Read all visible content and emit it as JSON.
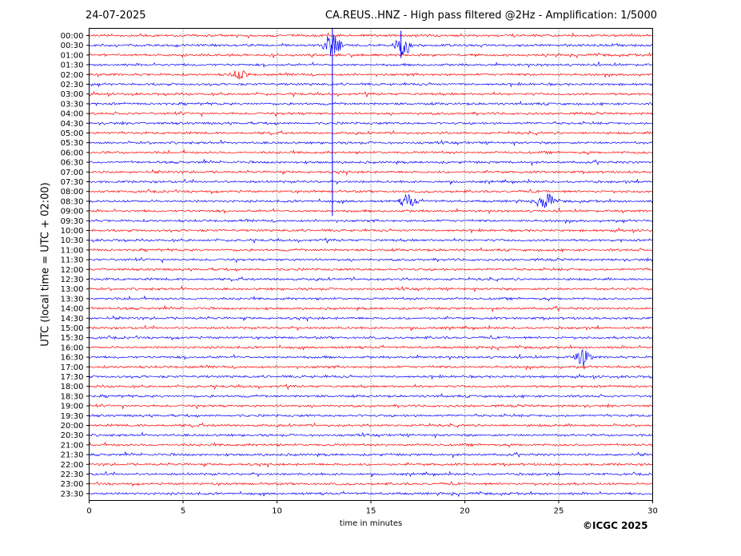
{
  "header": {
    "date": "24-07-2025",
    "title": "CA.REUS..HNZ - High pass filtered @2Hz - Amplification: 1/5000"
  },
  "footer": {
    "copyright": "©ICGC 2025"
  },
  "chart_data": {
    "type": "line",
    "title": "CA.REUS..HNZ - High pass filtered @2Hz - Amplification: 1/5000",
    "xlabel": "time in minutes",
    "ylabel": "UTC (local time = UTC + 02:00)",
    "xlim": [
      0,
      30
    ],
    "x_ticks": [
      0,
      5,
      10,
      15,
      20,
      25,
      30
    ],
    "grid": "vertical dotted",
    "trace_colors": [
      "#ff0000",
      "#0000ff"
    ],
    "rows": [
      "00:00",
      "00:30",
      "01:00",
      "01:30",
      "02:00",
      "02:30",
      "03:00",
      "03:30",
      "04:00",
      "04:30",
      "05:00",
      "05:30",
      "06:00",
      "06:30",
      "07:00",
      "07:30",
      "08:00",
      "08:30",
      "09:00",
      "09:30",
      "10:00",
      "10:30",
      "11:00",
      "11:30",
      "12:00",
      "12:30",
      "13:00",
      "13:30",
      "14:00",
      "14:30",
      "15:00",
      "15:30",
      "16:00",
      "16:30",
      "17:00",
      "17:30",
      "18:00",
      "18:30",
      "19:00",
      "19:30",
      "20:00",
      "20:30",
      "21:00",
      "21:30",
      "22:00",
      "22:30",
      "23:00",
      "23:30"
    ],
    "events": [
      {
        "row": "00:30",
        "minute": 16.7,
        "amplitude": 1.2
      },
      {
        "row": "00:30",
        "minute": 12.95,
        "amplitude": 1.5
      },
      {
        "row": "08:30",
        "minute": 17.0,
        "amplitude": 0.8
      },
      {
        "row": "08:30",
        "minute": 24.3,
        "amplitude": 1.0
      },
      {
        "row": "16:30",
        "minute": 26.3,
        "amplitude": 0.9
      },
      {
        "row": "02:00",
        "minute": 8.0,
        "amplitude": 0.5
      }
    ]
  }
}
